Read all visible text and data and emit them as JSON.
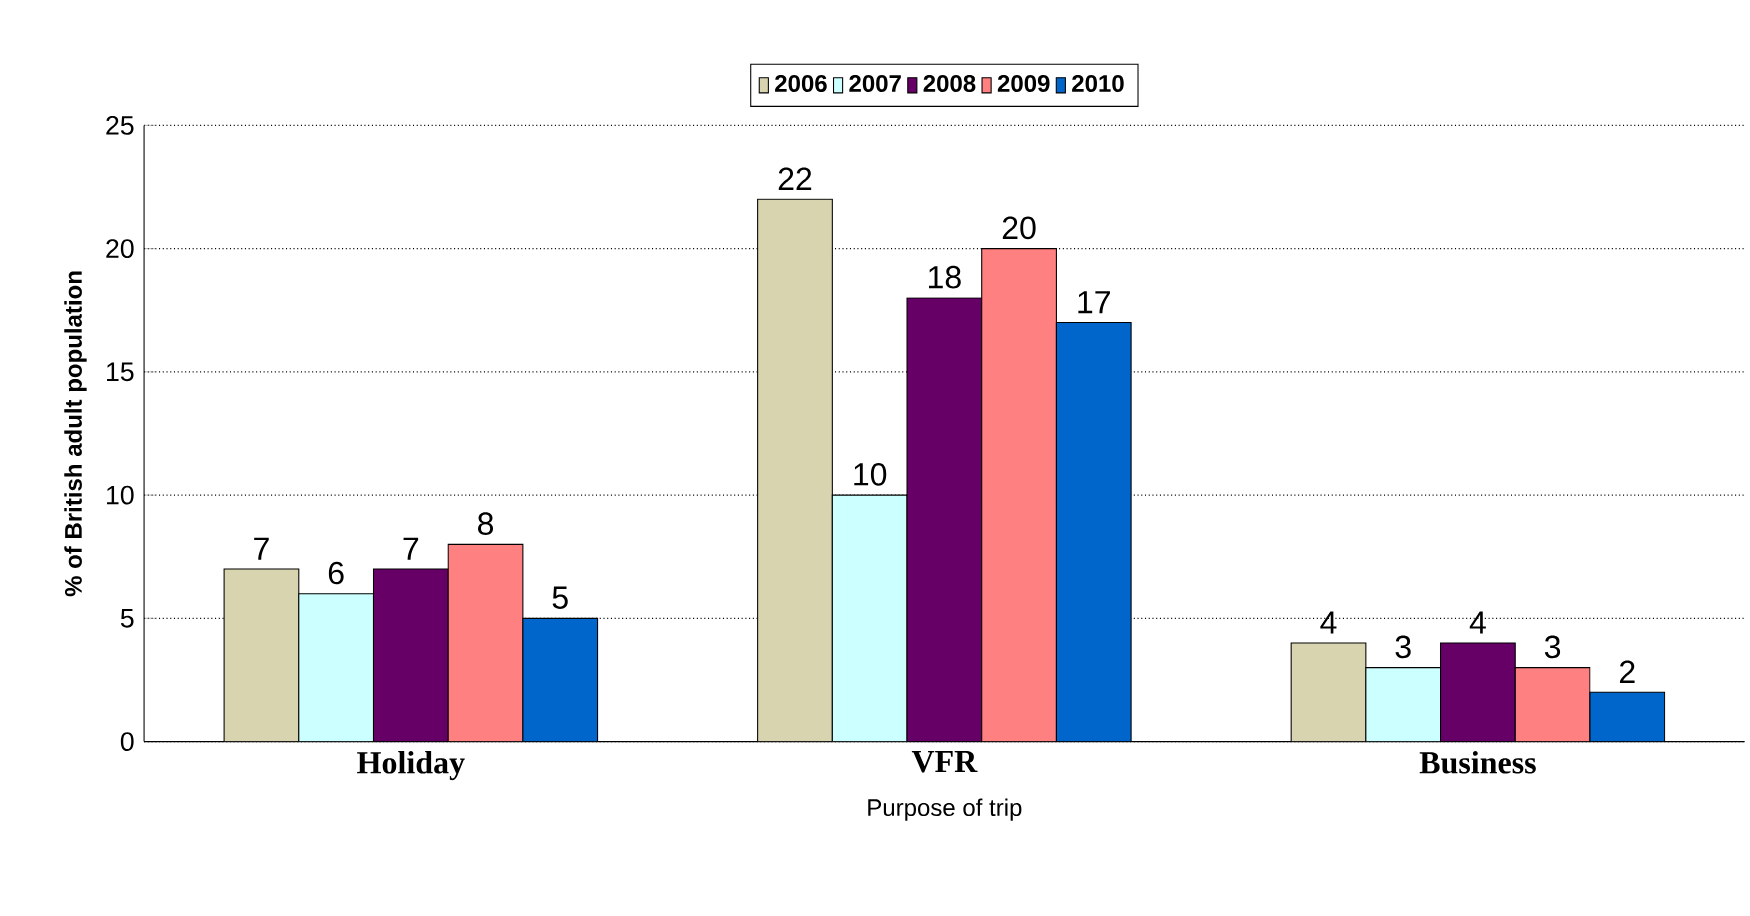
{
  "chart_data": {
    "type": "bar",
    "xlabel": "Purpose of trip",
    "ylabel": "% of British adult population",
    "categories": [
      "Holiday",
      "VFR",
      "Business"
    ],
    "series": [
      {
        "name": "2006",
        "color": "#d8d4b0",
        "values": [
          7,
          22,
          4
        ]
      },
      {
        "name": "2007",
        "color": "#ccffff",
        "values": [
          6,
          10,
          3
        ]
      },
      {
        "name": "2008",
        "color": "#660066",
        "values": [
          7,
          18,
          4
        ]
      },
      {
        "name": "2009",
        "color": "#ff8080",
        "values": [
          8,
          20,
          3
        ]
      },
      {
        "name": "2010",
        "color": "#0066cc",
        "values": [
          5,
          17,
          2
        ]
      }
    ],
    "ylim": [
      0,
      25
    ],
    "yticks": [
      0,
      5,
      10,
      15,
      20,
      25
    ],
    "grid": "y",
    "legend": "top",
    "data_labels": true
  }
}
